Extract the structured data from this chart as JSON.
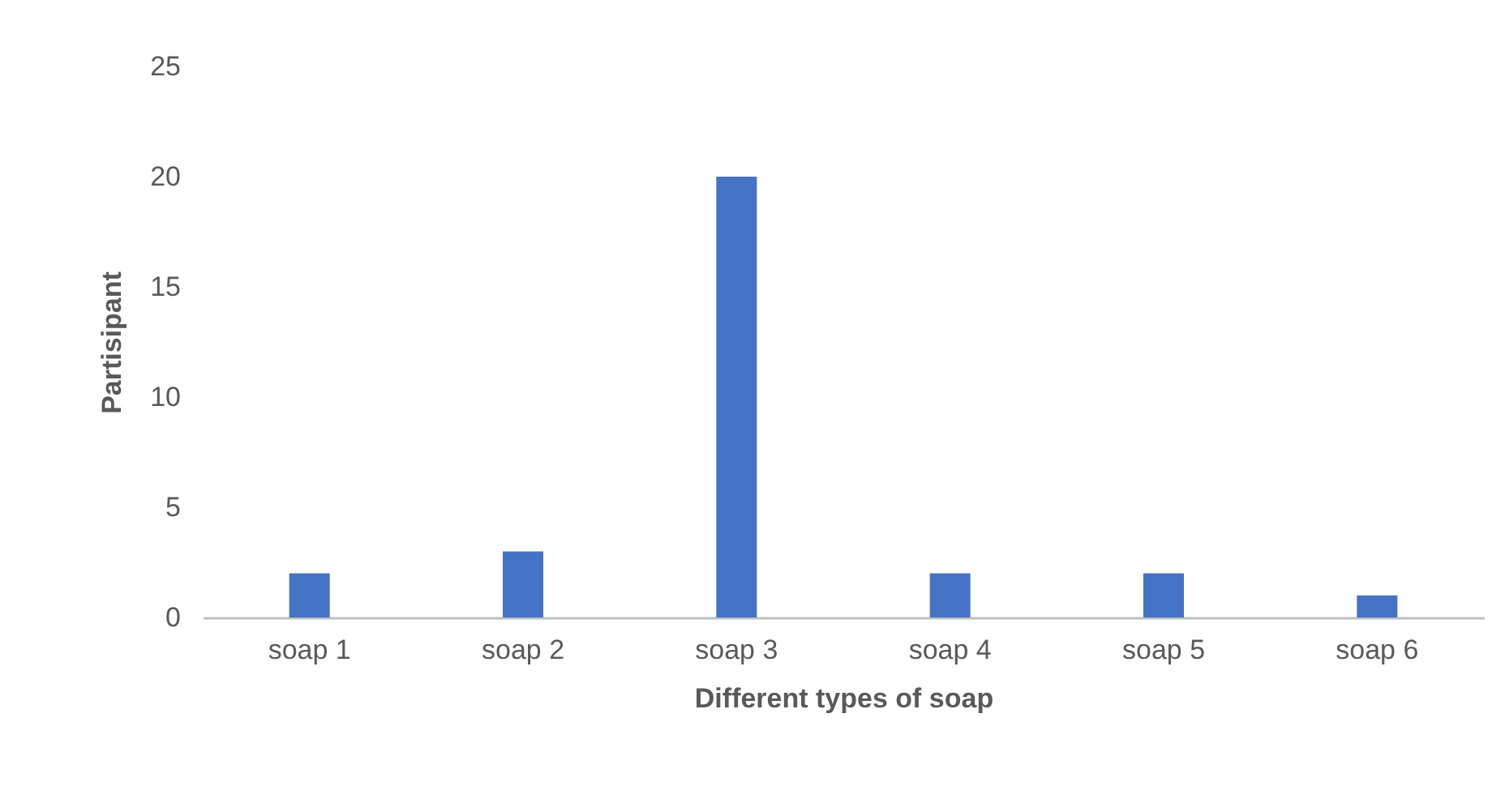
{
  "chart_data": {
    "type": "bar",
    "xlabel": "Different types of soap",
    "ylabel": "Partisipant",
    "categories": [
      "soap 1",
      "soap 2",
      "soap 3",
      "soap 4",
      "soap 5",
      "soap 6"
    ],
    "values": [
      2,
      3,
      20,
      2,
      2,
      1
    ],
    "color": "#4472c4",
    "ylim": [
      0,
      25
    ],
    "yticks": [
      0,
      5,
      10,
      15,
      20,
      25
    ],
    "grid": false
  }
}
